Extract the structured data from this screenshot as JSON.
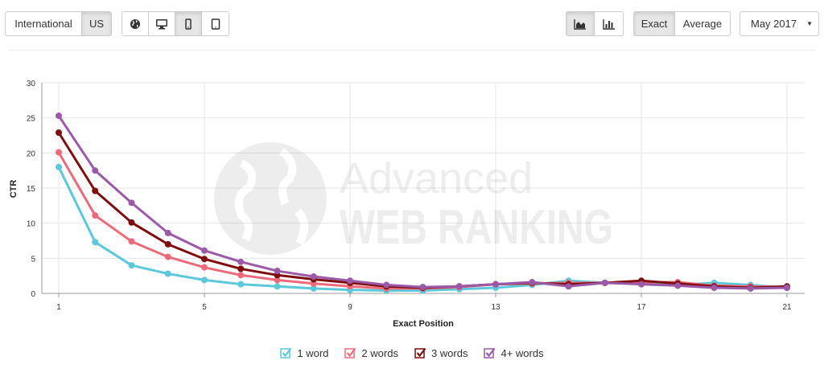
{
  "toolbar": {
    "region": {
      "international_label": "International",
      "us_label": "US",
      "selected": "us"
    },
    "devices": [
      {
        "icon": "globe-icon",
        "active": false
      },
      {
        "icon": "desktop-icon",
        "active": false
      },
      {
        "icon": "mobile-icon",
        "active": true
      },
      {
        "icon": "tablet-icon",
        "active": false
      }
    ],
    "chart_types": [
      {
        "icon": "area-chart-icon",
        "active": true
      },
      {
        "icon": "bar-chart-icon",
        "active": false
      }
    ],
    "match": {
      "exact_label": "Exact",
      "average_label": "Average",
      "selected": "exact"
    },
    "period": {
      "selected_label": "May 2017"
    }
  },
  "watermark": {
    "line1": "Advanced",
    "line2": "WEB RANKING"
  },
  "chart_data": {
    "type": "line",
    "title": "",
    "xlabel": "Exact Position",
    "ylabel": "CTR",
    "xlim": [
      1,
      21
    ],
    "ylim": [
      0,
      30
    ],
    "xticks": [
      1,
      5,
      9,
      13,
      17,
      21
    ],
    "yticks": [
      0,
      5,
      10,
      15,
      20,
      25,
      30
    ],
    "grid": true,
    "legend_position": "bottom",
    "x": [
      1,
      2,
      3,
      4,
      5,
      6,
      7,
      8,
      9,
      10,
      11,
      12,
      13,
      14,
      15,
      16,
      17,
      18,
      19,
      20,
      21
    ],
    "series": [
      {
        "name": "1 word",
        "color": "#5bc8dc",
        "values": [
          18.0,
          7.3,
          4.0,
          2.8,
          1.9,
          1.3,
          1.0,
          0.7,
          0.5,
          0.4,
          0.4,
          0.6,
          0.8,
          1.2,
          1.8,
          1.5,
          1.4,
          1.2,
          1.5,
          1.2,
          0.8
        ]
      },
      {
        "name": "2 words",
        "color": "#ec6b7b",
        "values": [
          20.1,
          11.1,
          7.4,
          5.2,
          3.7,
          2.6,
          1.9,
          1.4,
          1.0,
          0.7,
          0.7,
          0.9,
          1.3,
          1.4,
          1.5,
          1.5,
          1.6,
          1.6,
          1.1,
          1.0,
          0.9
        ]
      },
      {
        "name": "3 words",
        "color": "#7f0d0d",
        "values": [
          22.9,
          14.6,
          10.1,
          7.0,
          4.9,
          3.5,
          2.6,
          2.0,
          1.5,
          1.0,
          0.8,
          1.0,
          1.3,
          1.5,
          1.3,
          1.5,
          1.8,
          1.4,
          1.0,
          0.8,
          1.0
        ]
      },
      {
        "name": "4+ words",
        "color": "#9b59a8",
        "values": [
          25.3,
          17.5,
          12.9,
          8.6,
          6.1,
          4.5,
          3.2,
          2.4,
          1.8,
          1.2,
          0.9,
          1.0,
          1.3,
          1.6,
          1.0,
          1.5,
          1.3,
          1.1,
          0.8,
          0.7,
          0.8
        ]
      }
    ]
  }
}
